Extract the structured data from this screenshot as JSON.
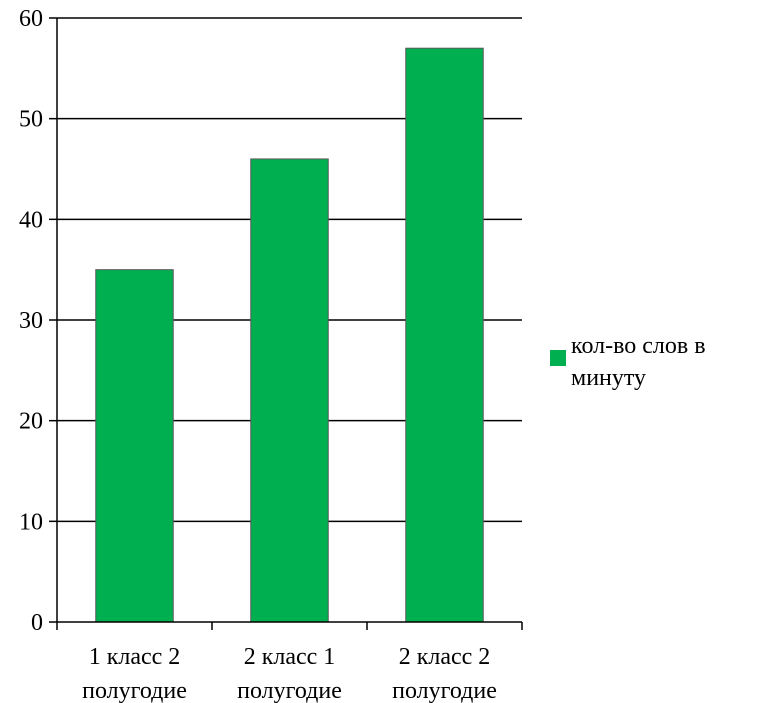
{
  "chart_data": {
    "type": "bar",
    "categories": [
      [
        "1 класс 2",
        "полугодие"
      ],
      [
        "2 класс 1",
        "полугодие"
      ],
      [
        "2 класс 2",
        "полугодие"
      ]
    ],
    "series": [
      {
        "name": "кол-во слов в минуту",
        "values": [
          35,
          46,
          57
        ],
        "color": "#00B050"
      }
    ],
    "title": "",
    "xlabel": "",
    "ylabel": "",
    "ylim": [
      0,
      60
    ],
    "yticks": [
      0,
      10,
      20,
      30,
      40,
      50,
      60
    ],
    "grid": true,
    "legend_position": "right"
  }
}
